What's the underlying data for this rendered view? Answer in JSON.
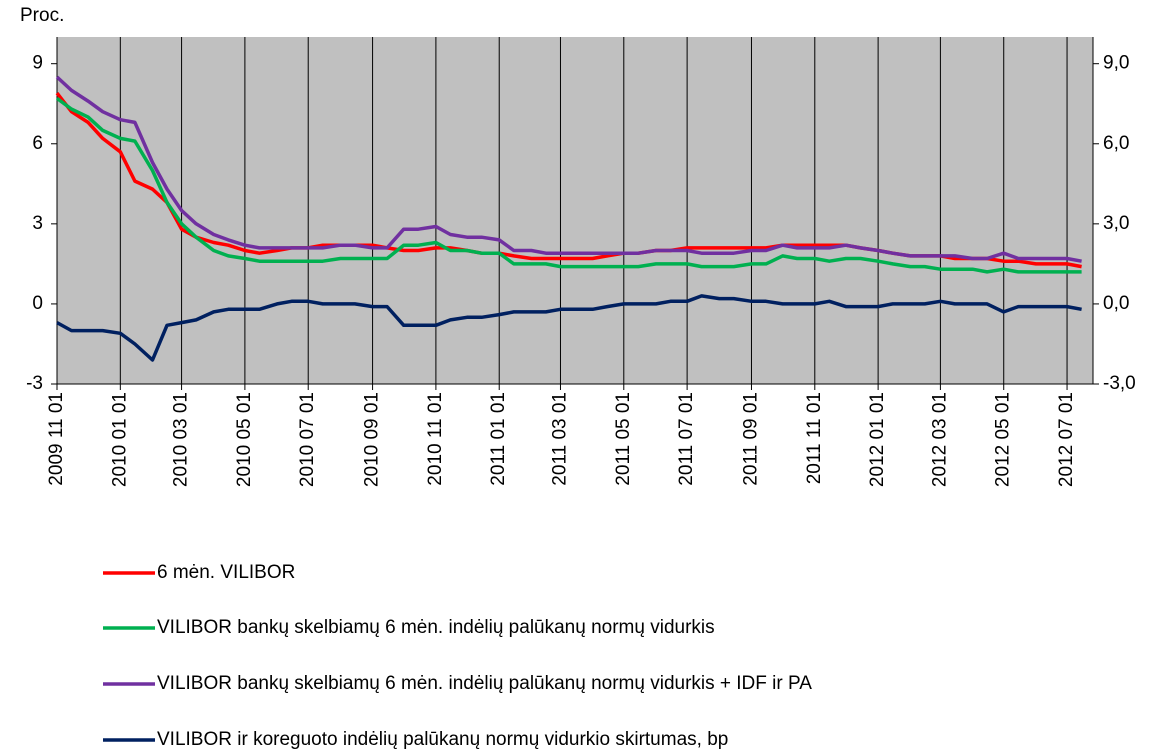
{
  "chart_data": {
    "type": "line",
    "y_label": "Proc.",
    "x": [
      "2009 11 01",
      "2009 11 15",
      "2009 12 01",
      "2009 12 15",
      "2010 01 01",
      "2010 01 15",
      "2010 02 01",
      "2010 02 15",
      "2010 03 01",
      "2010 03 15",
      "2010 04 01",
      "2010 04 15",
      "2010 05 01",
      "2010 05 15",
      "2010 06 01",
      "2010 06 15",
      "2010 07 01",
      "2010 07 15",
      "2010 08 01",
      "2010 08 15",
      "2010 09 01",
      "2010 09 15",
      "2010 10 01",
      "2010 10 15",
      "2010 11 01",
      "2010 11 15",
      "2010 12 01",
      "2010 12 15",
      "2011 01 01",
      "2011 01 15",
      "2011 02 01",
      "2011 02 15",
      "2011 03 01",
      "2011 03 15",
      "2011 04 01",
      "2011 04 15",
      "2011 05 01",
      "2011 05 15",
      "2011 06 01",
      "2011 06 15",
      "2011 07 01",
      "2011 07 15",
      "2011 08 01",
      "2011 08 15",
      "2011 09 01",
      "2011 09 15",
      "2011 10 01",
      "2011 10 15",
      "2011 11 01",
      "2011 11 15",
      "2011 12 01",
      "2011 12 15",
      "2012 01 01",
      "2012 01 15",
      "2012 02 01",
      "2012 02 15",
      "2012 03 01",
      "2012 03 15",
      "2012 04 01",
      "2012 04 15",
      "2012 05 01",
      "2012 05 15",
      "2012 06 01",
      "2012 06 15",
      "2012 07 01",
      "2012 07 15"
    ],
    "series": [
      {
        "name": "6 mėn. VILIBOR",
        "color": "#ff0000",
        "values": [
          7.9,
          7.2,
          6.8,
          6.2,
          5.7,
          4.6,
          4.3,
          3.8,
          2.8,
          2.5,
          2.3,
          2.2,
          2.0,
          1.9,
          2.0,
          2.1,
          2.1,
          2.2,
          2.2,
          2.2,
          2.2,
          2.1,
          2.0,
          2.0,
          2.1,
          2.1,
          2.0,
          1.9,
          1.9,
          1.8,
          1.7,
          1.7,
          1.7,
          1.7,
          1.7,
          1.8,
          1.9,
          1.9,
          2.0,
          2.0,
          2.1,
          2.1,
          2.1,
          2.1,
          2.1,
          2.1,
          2.2,
          2.2,
          2.2,
          2.2,
          2.2,
          2.1,
          2.0,
          1.9,
          1.8,
          1.8,
          1.8,
          1.7,
          1.7,
          1.7,
          1.6,
          1.6,
          1.5,
          1.5,
          1.5,
          1.4
        ]
      },
      {
        "name": "VILIBOR bankų skelbiamų 6 mėn. indėlių palūkanų normų vidurkis",
        "color": "#00b050",
        "values": [
          7.7,
          7.3,
          7.0,
          6.5,
          6.2,
          6.1,
          5.0,
          3.8,
          3.0,
          2.5,
          2.0,
          1.8,
          1.7,
          1.6,
          1.6,
          1.6,
          1.6,
          1.6,
          1.7,
          1.7,
          1.7,
          1.7,
          2.2,
          2.2,
          2.3,
          2.0,
          2.0,
          1.9,
          1.9,
          1.5,
          1.5,
          1.5,
          1.4,
          1.4,
          1.4,
          1.4,
          1.4,
          1.4,
          1.5,
          1.5,
          1.5,
          1.4,
          1.4,
          1.4,
          1.5,
          1.5,
          1.8,
          1.7,
          1.7,
          1.6,
          1.7,
          1.7,
          1.6,
          1.5,
          1.4,
          1.4,
          1.3,
          1.3,
          1.3,
          1.2,
          1.3,
          1.2,
          1.2,
          1.2,
          1.2,
          1.2
        ]
      },
      {
        "name": "VILIBOR bankų skelbiamų 6 mėn. indėlių palūkanų normų vidurkis + IDF ir PA",
        "color": "#7030a0",
        "values": [
          8.5,
          8.0,
          7.6,
          7.2,
          6.9,
          6.8,
          5.3,
          4.3,
          3.5,
          3.0,
          2.6,
          2.4,
          2.2,
          2.1,
          2.1,
          2.1,
          2.1,
          2.1,
          2.2,
          2.2,
          2.1,
          2.1,
          2.8,
          2.8,
          2.9,
          2.6,
          2.5,
          2.5,
          2.4,
          2.0,
          2.0,
          1.9,
          1.9,
          1.9,
          1.9,
          1.9,
          1.9,
          1.9,
          2.0,
          2.0,
          2.0,
          1.9,
          1.9,
          1.9,
          2.0,
          2.0,
          2.2,
          2.1,
          2.1,
          2.1,
          2.2,
          2.1,
          2.0,
          1.9,
          1.8,
          1.8,
          1.8,
          1.8,
          1.7,
          1.7,
          1.9,
          1.7,
          1.7,
          1.7,
          1.7,
          1.6
        ]
      },
      {
        "name": "VILIBOR ir koreguoto indėlių palūkanų normų vidurkio skirtumas, bp",
        "color": "#002060",
        "values": [
          -0.7,
          -1.0,
          -1.0,
          -1.0,
          -1.1,
          -1.5,
          -2.1,
          -0.8,
          -0.7,
          -0.6,
          -0.3,
          -0.2,
          -0.2,
          -0.2,
          0.0,
          0.1,
          0.1,
          0.0,
          0.0,
          0.0,
          -0.1,
          -0.1,
          -0.8,
          -0.8,
          -0.8,
          -0.6,
          -0.5,
          -0.5,
          -0.4,
          -0.3,
          -0.3,
          -0.3,
          -0.2,
          -0.2,
          -0.2,
          -0.1,
          0.0,
          0.0,
          0.0,
          0.1,
          0.1,
          0.3,
          0.2,
          0.2,
          0.1,
          0.1,
          0.0,
          0.0,
          0.0,
          0.1,
          -0.1,
          -0.1,
          -0.1,
          0.0,
          0.0,
          0.0,
          0.1,
          0.0,
          0.0,
          0.0,
          -0.3,
          -0.1,
          -0.1,
          -0.1,
          -0.1,
          -0.2
        ]
      }
    ],
    "xlim": [
      "2009 11 01",
      "2012 07 26"
    ],
    "xticks": [
      "2009 11 01",
      "2010 01 01",
      "2010 03 01",
      "2010 05 01",
      "2010 07 01",
      "2010 09 01",
      "2010 11 01",
      "2011 01 01",
      "2011 03 01",
      "2011 05 01",
      "2011 07 01",
      "2011 09 01",
      "2011 11 01",
      "2012 01 01",
      "2012 03 01",
      "2012 05 01",
      "2012 07 01"
    ],
    "ylim": [
      -3,
      10
    ],
    "yticks": [
      9,
      6,
      3,
      0,
      -3
    ],
    "y2lim": [
      -3,
      10
    ],
    "y2ticks": [
      {
        "value": 9,
        "label": "9,0"
      },
      {
        "value": 6,
        "label": "6,0"
      },
      {
        "value": 3,
        "label": "3,0"
      },
      {
        "value": 0,
        "label": "0,0"
      },
      {
        "value": -3,
        "label": "-3,0"
      }
    ],
    "grid": "x",
    "legend": "bottom"
  }
}
